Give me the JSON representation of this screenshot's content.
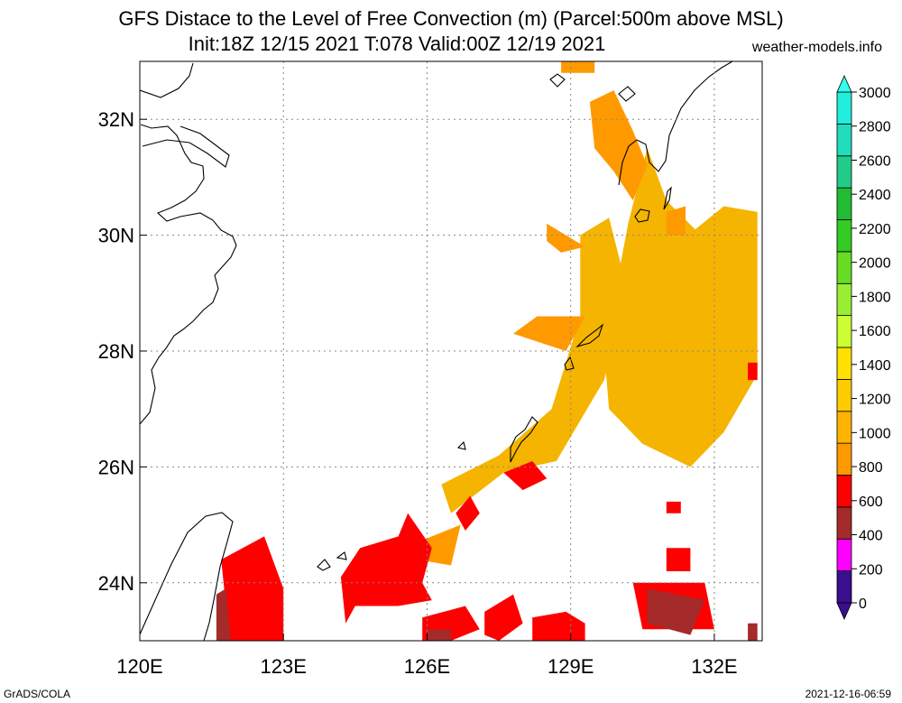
{
  "title": "GFS Distace to the Level of Free Convection (m) (Parcel:500m above MSL)",
  "subtitle": "Init:18Z 12/15 2021 T:078 Valid:00Z 12/19 2021",
  "source": "weather-models.info",
  "footer_left": "GrADS/COLA",
  "footer_right": "2021-12-16-06:59",
  "chart_data": {
    "type": "heatmap",
    "title": "GFS Distace to the Level of Free Convection (m) (Parcel:500m above MSL)",
    "subtitle": "Init:18Z 12/15 2021 T:078 Valid:00Z 12/19 2021",
    "xlim": [
      120,
      133
    ],
    "ylim": [
      23,
      33
    ],
    "x_ticks": [
      {
        "value": 120,
        "label": "120E"
      },
      {
        "value": 123,
        "label": "123E"
      },
      {
        "value": 126,
        "label": "126E"
      },
      {
        "value": 129,
        "label": "129E"
      },
      {
        "value": 132,
        "label": "132E"
      }
    ],
    "y_ticks": [
      {
        "value": 24,
        "label": "24N"
      },
      {
        "value": 26,
        "label": "26N"
      },
      {
        "value": 28,
        "label": "28N"
      },
      {
        "value": 30,
        "label": "30N"
      },
      {
        "value": 32,
        "label": "32N"
      }
    ],
    "grid": true,
    "colorbar": {
      "levels": [
        "0",
        "200",
        "400",
        "600",
        "800",
        "1000",
        "1200",
        "1400",
        "1600",
        "1800",
        "2000",
        "2200",
        "2400",
        "2600",
        "2800",
        "3000"
      ],
      "colors": [
        "#3a0e8c",
        "#ff00ff",
        "#a52a2a",
        "#ff0000",
        "#ff9900",
        "#ffb300",
        "#ffcc00",
        "#ffe100",
        "#ccff33",
        "#99ee33",
        "#66dd22",
        "#33cc22",
        "#22bb33",
        "#22cc88",
        "#22ddbb",
        "#22eedd"
      ],
      "min_color": "#3a0e8c",
      "max_color": "#33ffee"
    },
    "regions": [
      {
        "category": "800-1000",
        "polygon": [
          [
            129.7,
            28.0
          ],
          [
            130.2,
            30.2
          ],
          [
            130.6,
            31.5
          ],
          [
            131.0,
            30.6
          ],
          [
            131.6,
            30.1
          ],
          [
            132.2,
            30.5
          ],
          [
            132.9,
            30.4
          ],
          [
            132.9,
            27.6
          ],
          [
            132.2,
            26.6
          ],
          [
            131.5,
            26.0
          ],
          [
            130.5,
            26.4
          ],
          [
            129.8,
            27.0
          ]
        ]
      },
      {
        "category": "800-1000",
        "polygon": [
          [
            126.3,
            25.7
          ],
          [
            127.5,
            26.2
          ],
          [
            128.6,
            27.0
          ],
          [
            129.2,
            28.6
          ],
          [
            129.2,
            30.0
          ],
          [
            129.8,
            30.3
          ],
          [
            130.2,
            29.0
          ],
          [
            129.7,
            27.5
          ],
          [
            128.7,
            26.1
          ],
          [
            127.6,
            25.9
          ],
          [
            126.5,
            25.2
          ]
        ]
      },
      {
        "category": "600-800",
        "polygon": [
          [
            129.4,
            32.3
          ],
          [
            129.9,
            32.5
          ],
          [
            130.3,
            31.8
          ],
          [
            130.6,
            31.2
          ],
          [
            130.3,
            30.6
          ],
          [
            129.9,
            31.1
          ],
          [
            129.5,
            31.5
          ]
        ]
      },
      {
        "category": "600-800",
        "polygon": [
          [
            128.8,
            33.0
          ],
          [
            129.5,
            33.0
          ],
          [
            129.5,
            32.8
          ],
          [
            128.8,
            32.8
          ]
        ]
      },
      {
        "category": "600-800",
        "polygon": [
          [
            128.5,
            30.2
          ],
          [
            128.9,
            30.0
          ],
          [
            129.3,
            29.8
          ],
          [
            128.8,
            29.7
          ],
          [
            128.5,
            29.9
          ]
        ]
      },
      {
        "category": "600-800",
        "polygon": [
          [
            127.8,
            28.3
          ],
          [
            128.9,
            28.0
          ],
          [
            129.3,
            28.6
          ],
          [
            128.3,
            28.6
          ]
        ]
      },
      {
        "category": "600-800",
        "polygon": [
          [
            125.5,
            24.6
          ],
          [
            126.1,
            24.8
          ],
          [
            126.7,
            25.0
          ],
          [
            126.5,
            24.3
          ],
          [
            125.8,
            24.4
          ]
        ]
      },
      {
        "category": "600-800",
        "polygon": [
          [
            131.0,
            30.4
          ],
          [
            131.4,
            30.5
          ],
          [
            131.4,
            30.0
          ],
          [
            131.0,
            30.0
          ]
        ]
      },
      {
        "category": "400-600",
        "polygon": [
          [
            121.7,
            24.4
          ],
          [
            122.6,
            24.8
          ],
          [
            123.0,
            23.9
          ],
          [
            123.0,
            23.0
          ],
          [
            121.7,
            23.0
          ],
          [
            121.8,
            23.6
          ]
        ]
      },
      {
        "category": "400-600",
        "polygon": [
          [
            124.2,
            24.1
          ],
          [
            124.6,
            24.6
          ],
          [
            125.4,
            24.8
          ],
          [
            125.6,
            25.2
          ],
          [
            126.1,
            24.6
          ],
          [
            125.9,
            24.0
          ],
          [
            126.1,
            23.7
          ],
          [
            125.4,
            23.6
          ],
          [
            124.5,
            23.6
          ],
          [
            124.3,
            23.3
          ]
        ]
      },
      {
        "category": "400-600",
        "polygon": [
          [
            125.9,
            23.4
          ],
          [
            126.8,
            23.6
          ],
          [
            127.1,
            23.2
          ],
          [
            126.5,
            23.0
          ],
          [
            125.9,
            23.0
          ]
        ]
      },
      {
        "category": "400-600",
        "polygon": [
          [
            127.2,
            23.5
          ],
          [
            127.8,
            23.8
          ],
          [
            128.0,
            23.3
          ],
          [
            127.5,
            23.0
          ],
          [
            127.2,
            23.1
          ]
        ]
      },
      {
        "category": "400-600",
        "polygon": [
          [
            128.2,
            23.4
          ],
          [
            128.9,
            23.5
          ],
          [
            129.3,
            23.3
          ],
          [
            129.3,
            23.0
          ],
          [
            128.2,
            23.0
          ]
        ]
      },
      {
        "category": "400-600",
        "polygon": [
          [
            126.6,
            25.2
          ],
          [
            126.9,
            25.5
          ],
          [
            127.1,
            25.2
          ],
          [
            126.8,
            24.9
          ]
        ]
      },
      {
        "category": "400-600",
        "polygon": [
          [
            130.3,
            24.0
          ],
          [
            131.8,
            24.0
          ],
          [
            132.0,
            23.2
          ],
          [
            130.5,
            23.2
          ]
        ]
      },
      {
        "category": "400-600",
        "polygon": [
          [
            127.6,
            25.9
          ],
          [
            128.2,
            26.1
          ],
          [
            128.5,
            25.8
          ],
          [
            128.0,
            25.6
          ]
        ]
      },
      {
        "category": "400-600",
        "polygon": [
          [
            132.7,
            27.5
          ],
          [
            132.9,
            27.5
          ],
          [
            132.9,
            27.8
          ],
          [
            132.7,
            27.8
          ]
        ]
      },
      {
        "category": "400-600",
        "polygon": [
          [
            131.0,
            24.6
          ],
          [
            131.5,
            24.6
          ],
          [
            131.5,
            24.2
          ],
          [
            131.0,
            24.2
          ]
        ]
      },
      {
        "category": "400-600",
        "polygon": [
          [
            131.0,
            25.4
          ],
          [
            131.3,
            25.4
          ],
          [
            131.3,
            25.2
          ],
          [
            131.0,
            25.2
          ]
        ]
      },
      {
        "category": "200-400",
        "polygon": [
          [
            121.6,
            23.8
          ],
          [
            121.8,
            23.9
          ],
          [
            121.9,
            23.0
          ],
          [
            121.6,
            23.0
          ]
        ]
      },
      {
        "category": "200-400",
        "polygon": [
          [
            130.6,
            23.9
          ],
          [
            131.8,
            23.7
          ],
          [
            131.5,
            23.1
          ],
          [
            130.6,
            23.3
          ]
        ]
      },
      {
        "category": "200-400",
        "polygon": [
          [
            126.0,
            23.0
          ],
          [
            126.5,
            23.0
          ],
          [
            126.5,
            23.2
          ],
          [
            126.0,
            23.2
          ]
        ]
      },
      {
        "category": "200-400",
        "polygon": [
          [
            132.7,
            23.0
          ],
          [
            132.9,
            23.0
          ],
          [
            132.9,
            23.3
          ],
          [
            132.7,
            23.3
          ]
        ]
      }
    ]
  }
}
